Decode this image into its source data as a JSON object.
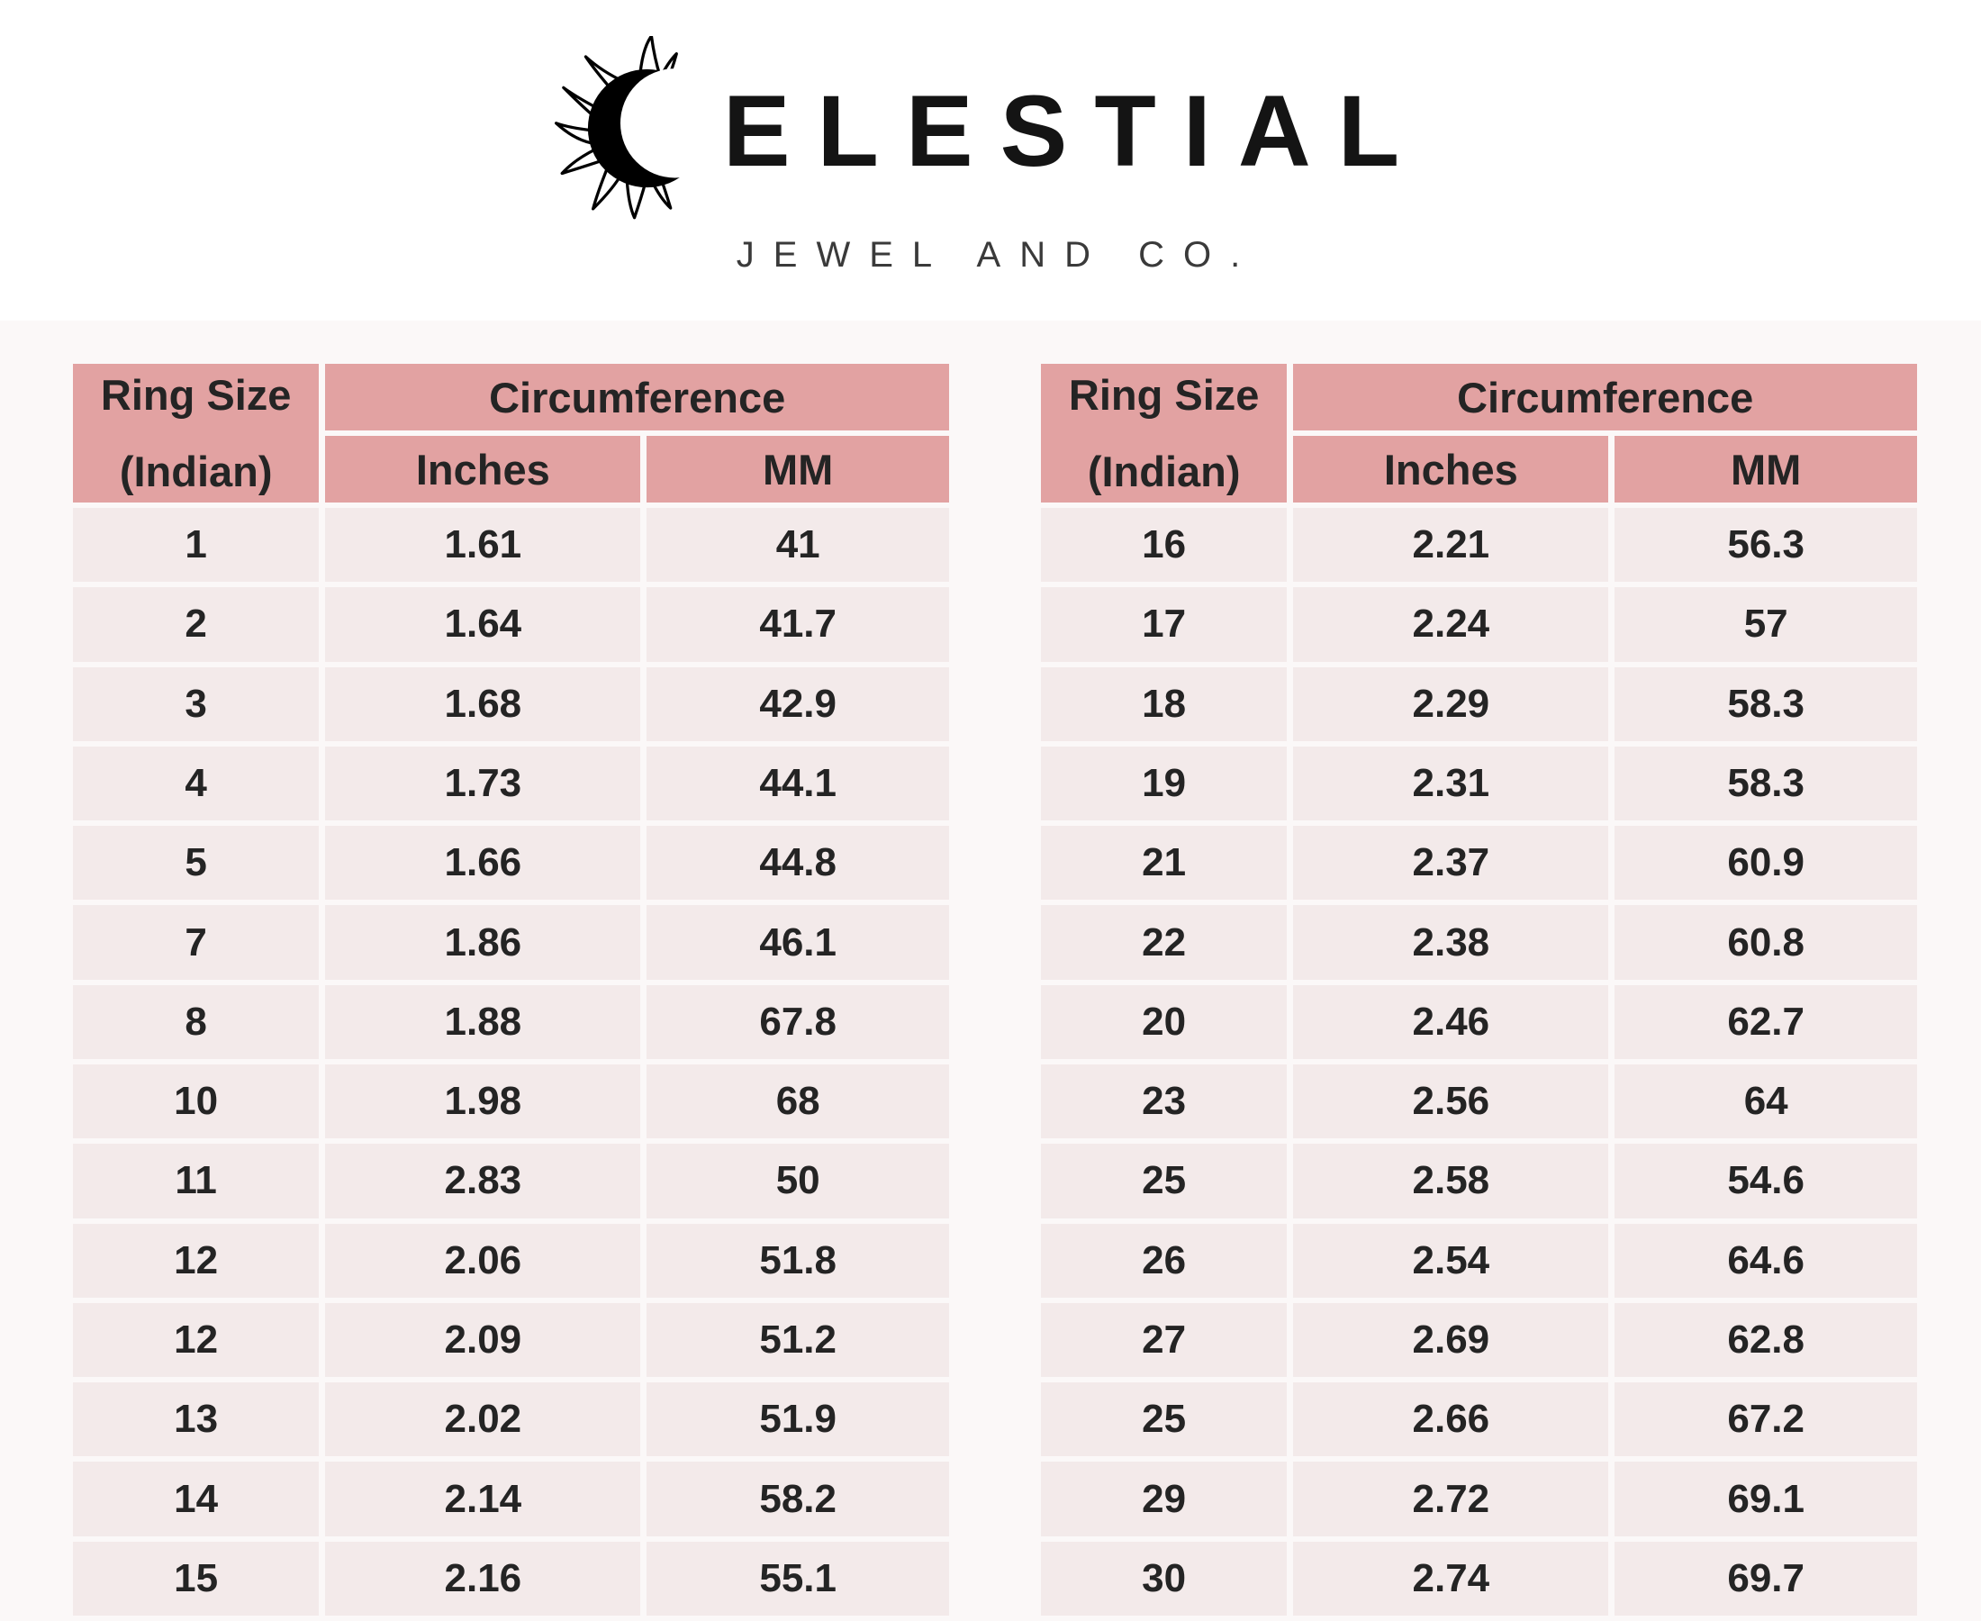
{
  "page": {
    "background": "#fbf8f8",
    "top_background": "#ffffff"
  },
  "brand": {
    "name": "CELESTIAL",
    "wordmark_after_icon": "ELESTIAL",
    "tagline": "JEWEL AND CO.",
    "icon": "sun-crescent-icon",
    "text_color": "#141414"
  },
  "colors": {
    "table_header_bg": "#e2a2a2",
    "table_row_bg": "#f3eaea",
    "table_text": "#242424"
  },
  "tables": [
    {
      "header": {
        "ring_size_line1": "Ring Size",
        "ring_size_line2": "(Indian)",
        "group": "Circumference",
        "inches": "Inches",
        "mm": "MM"
      },
      "rows": [
        [
          "1",
          "1.61",
          "41"
        ],
        [
          "2",
          "1.64",
          "41.7"
        ],
        [
          "3",
          "1.68",
          "42.9"
        ],
        [
          "4",
          "1.73",
          "44.1"
        ],
        [
          "5",
          "1.66",
          "44.8"
        ],
        [
          "7",
          "1.86",
          "46.1"
        ],
        [
          "8",
          "1.88",
          "67.8"
        ],
        [
          "10",
          "1.98",
          "68"
        ],
        [
          "11",
          "2.83",
          "50"
        ],
        [
          "12",
          "2.06",
          "51.8"
        ],
        [
          "12",
          "2.09",
          "51.2"
        ],
        [
          "13",
          "2.02",
          "51.9"
        ],
        [
          "14",
          "2.14",
          "58.2"
        ],
        [
          "15",
          "2.16",
          "55.1"
        ]
      ]
    },
    {
      "header": {
        "ring_size_line1": "Ring Size",
        "ring_size_line2": "(Indian)",
        "group": "Circumference",
        "inches": "Inches",
        "mm": "MM"
      },
      "rows": [
        [
          "16",
          "2.21",
          "56.3"
        ],
        [
          "17",
          "2.24",
          "57"
        ],
        [
          "18",
          "2.29",
          "58.3"
        ],
        [
          "19",
          "2.31",
          "58.3"
        ],
        [
          "21",
          "2.37",
          "60.9"
        ],
        [
          "22",
          "2.38",
          "60.8"
        ],
        [
          "20",
          "2.46",
          "62.7"
        ],
        [
          "23",
          "2.56",
          "64"
        ],
        [
          "25",
          "2.58",
          "54.6"
        ],
        [
          "26",
          "2.54",
          "64.6"
        ],
        [
          "27",
          "2.69",
          "62.8"
        ],
        [
          "25",
          "2.66",
          "67.2"
        ],
        [
          "29",
          "2.72",
          "69.1"
        ],
        [
          "30",
          "2.74",
          "69.7"
        ]
      ]
    }
  ]
}
